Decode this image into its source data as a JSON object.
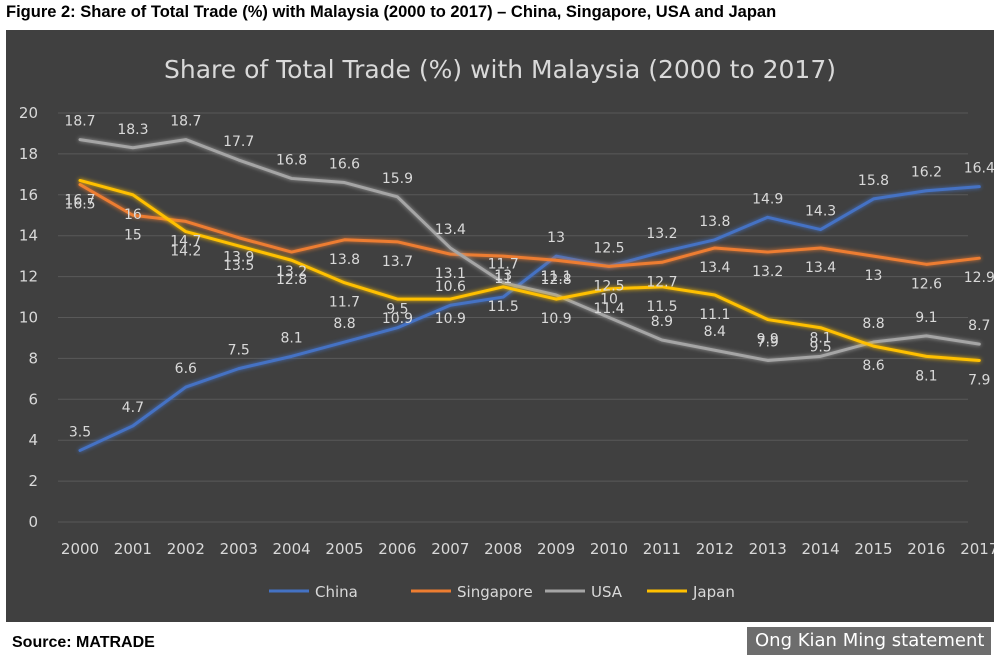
{
  "figure_caption": "Figure 2: Share of Total Trade (%) with Malaysia (2000 to 2017) – China, Singapore, USA and Japan",
  "source_text": "Source: MATRADE",
  "watermark_text": "Ong Kian Ming statement",
  "colors": {
    "panel_bg": "#404040",
    "grid": "#595959",
    "text": "#d9d9d9",
    "China": "#4472c4",
    "Singapore": "#ed7d31",
    "USA": "#a5a5a5",
    "Japan": "#ffc000"
  },
  "chart_data": {
    "type": "line",
    "title": "Share of Total Trade (%) with Malaysia (2000 to 2017)",
    "xlabel": "",
    "ylabel": "",
    "ylim": [
      0,
      20
    ],
    "yticks": [
      "0",
      "2",
      "4",
      "6",
      "8",
      "10",
      "12",
      "14",
      "16",
      "18",
      "20"
    ],
    "grid": true,
    "legend_position": "bottom",
    "categories": [
      "2000",
      "2001",
      "2002",
      "2003",
      "2004",
      "2005",
      "2006",
      "2007",
      "2008",
      "2009",
      "2010",
      "2011",
      "2012",
      "2013",
      "2014",
      "2015",
      "2016",
      "2017"
    ],
    "series": [
      {
        "name": "China",
        "values": [
          3.5,
          4.7,
          6.6,
          7.5,
          8.1,
          8.8,
          9.5,
          10.6,
          11,
          13,
          12.5,
          13.2,
          13.8,
          14.9,
          14.3,
          15.8,
          16.2,
          16.4
        ]
      },
      {
        "name": "Singapore",
        "values": [
          16.5,
          15,
          14.7,
          13.9,
          13.2,
          13.8,
          13.7,
          13.1,
          13,
          12.8,
          12.5,
          12.7,
          13.4,
          13.2,
          13.4,
          13,
          12.6,
          12.9
        ]
      },
      {
        "name": "USA",
        "values": [
          18.7,
          18.3,
          18.7,
          17.7,
          16.8,
          16.6,
          15.9,
          13.4,
          11.7,
          11.1,
          10,
          8.9,
          8.4,
          7.9,
          8.1,
          8.8,
          9.1,
          8.7
        ]
      },
      {
        "name": "Japan",
        "values": [
          16.7,
          16,
          14.2,
          13.5,
          12.8,
          11.7,
          10.9,
          10.9,
          11.5,
          10.9,
          11.4,
          11.5,
          11.1,
          9.9,
          9.5,
          8.6,
          8.1,
          7.9
        ]
      }
    ]
  }
}
